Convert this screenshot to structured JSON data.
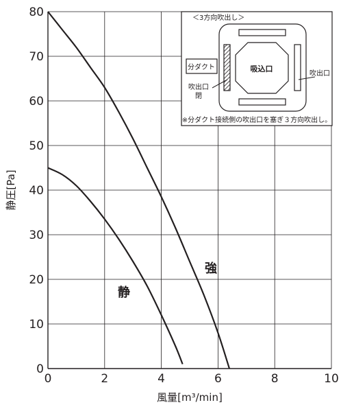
{
  "chart_data": {
    "type": "line",
    "xlabel": "風量[m³/min]",
    "ylabel": "静圧[Pa]",
    "xlim": [
      0,
      10
    ],
    "ylim": [
      0,
      80
    ],
    "x_ticks": [
      "0",
      "2",
      "4",
      "6",
      "8",
      "10"
    ],
    "y_ticks": [
      "0",
      "10",
      "20",
      "30",
      "40",
      "50",
      "60",
      "70",
      "80"
    ],
    "grid": true,
    "series": [
      {
        "name": "強",
        "x": [
          0,
          0.5,
          1,
          1.5,
          2,
          2.5,
          3,
          3.5,
          4,
          4.5,
          5,
          5.5,
          6,
          6.4
        ],
        "y": [
          80,
          76,
          72,
          67.5,
          63,
          57.5,
          51.5,
          45,
          38.5,
          31.5,
          24,
          16.5,
          8,
          0
        ]
      },
      {
        "name": "静",
        "x": [
          0,
          0.5,
          1,
          1.5,
          2,
          2.5,
          3,
          3.5,
          4,
          4.5,
          4.75
        ],
        "y": [
          45,
          43.5,
          41,
          37.5,
          33.5,
          29,
          24,
          18.5,
          12,
          5,
          1
        ]
      }
    ],
    "inset": {
      "title": "＜3方向吹出し＞",
      "duct_label": "分ダクト",
      "intake_label": "吸込口",
      "outlet_label": "吹出口",
      "closed_outlet_label_line1": "吹出口",
      "closed_outlet_label_line2": "閉",
      "note": "※分ダクト接続側の吹出口を塞ぎ３方向吹出し。"
    }
  }
}
